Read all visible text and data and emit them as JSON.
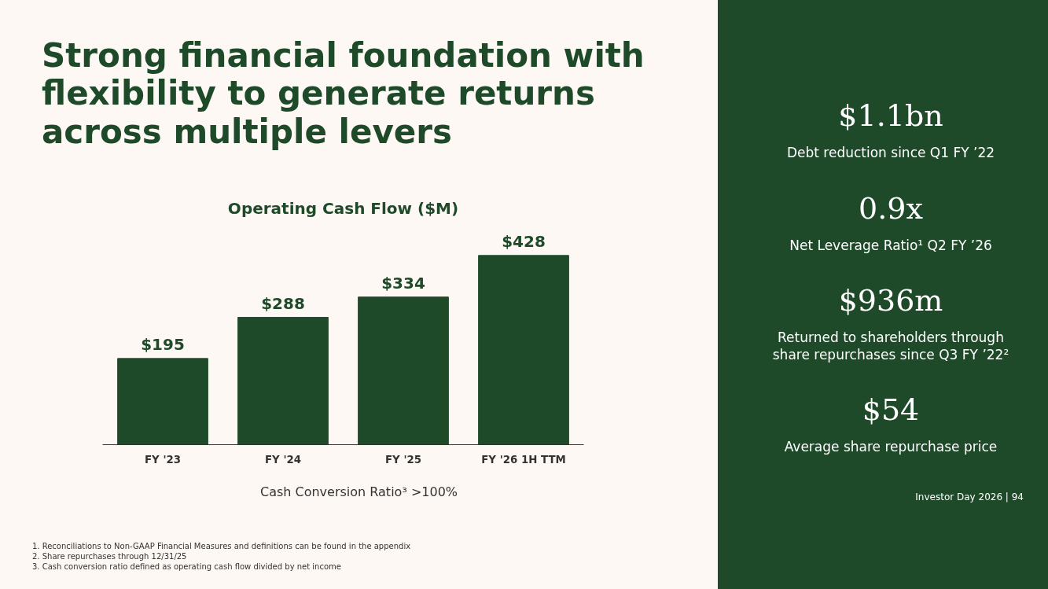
{
  "chart_data": [
    {
      "type": "bar",
      "title": "Strong financial foundation with flexibility to generate returns across multiple levers",
      "subtitle": "Operating Cash Flow ($M)",
      "categories": [
        "FY '23",
        "FY '24",
        "FY '25",
        "FY '26 1H TTM"
      ],
      "values": [
        195,
        288,
        334,
        428
      ],
      "color": "#1e4a2a",
      "value_labels": [
        "$195",
        "$288",
        "$334",
        "$428"
      ],
      "grid": false,
      "annotations": [
        "Cash Conversion Ratio³ >100%",
        "1. Reconciliations to Non-GAAP Financial Measures and definitions can be found in the appendix",
        "2. Share repurchases through 12/31/25",
        "3. Cash conversion ratio defined as operating cash flow divided by net income"
      ]
    },
    {
      "type": "other",
      "annotations": [
        "$1.1bn",
        "Debt reduction since Q1 FY ’22",
        "0.9x",
        "Net Leverage Ratio¹ Q2 FY ’26",
        "$936m",
        "Returned to shareholders through share repurchases since Q3 FY ’22²",
        "$54",
        "Average share repurchase price",
        "Investor Day 2026 | 94"
      ]
    }
  ]
}
